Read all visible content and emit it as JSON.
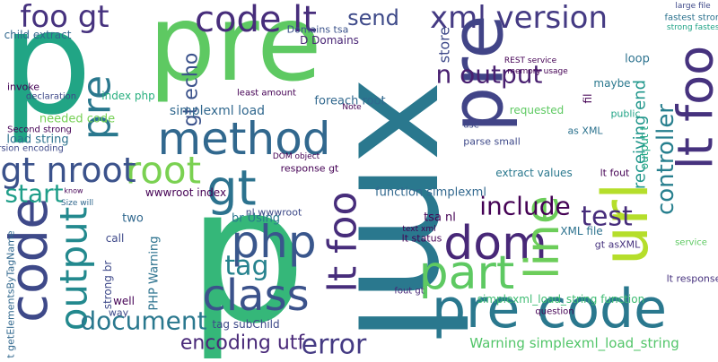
{
  "words": [
    "pre",
    "p",
    "xml",
    "p",
    "pre code",
    "code lt",
    "xml version",
    "foo gt",
    "pre",
    "url",
    "lt foo",
    "method",
    "root",
    "gt nroot",
    "gt",
    "code",
    "output",
    "pre",
    "php",
    "dom",
    "part",
    "line",
    "class",
    "lt foo",
    "tag",
    "document",
    "encoding utf",
    "error",
    "include",
    "test",
    "controller",
    "n output",
    "send",
    "start",
    "gt echo",
    "Warning simplexml_load_string",
    "simplexml_load_string function",
    "receiving end",
    "store",
    "index php",
    "simplexml load",
    "load string",
    "needed code",
    "foreach root",
    "function simplexml",
    "br Using",
    "wwwroot index",
    "nl wwwroot",
    "tag subChild",
    "lt status",
    "PHP Warning",
    "strong br",
    "gt getElementsByTagName",
    "extract values",
    "XML file",
    "lt response",
    "tsa nl",
    "D Domains",
    "Domains tsa",
    "loop",
    "requested",
    "maybe",
    "fil",
    "public",
    "lt fout",
    "output t",
    "child extract",
    "invoke",
    "declaration",
    "version encoding",
    "response gt",
    "Second strong",
    "as XML",
    "fout gt",
    "question",
    "service",
    "two",
    "call",
    "well",
    "way",
    "gt asXML",
    "large file",
    "fastest strong",
    "strong fastest",
    "DOM object",
    "text xml",
    "parse small",
    "use",
    "Note",
    "know",
    "Size will",
    "memory usage",
    "REST service",
    "least amount"
  ]
}
